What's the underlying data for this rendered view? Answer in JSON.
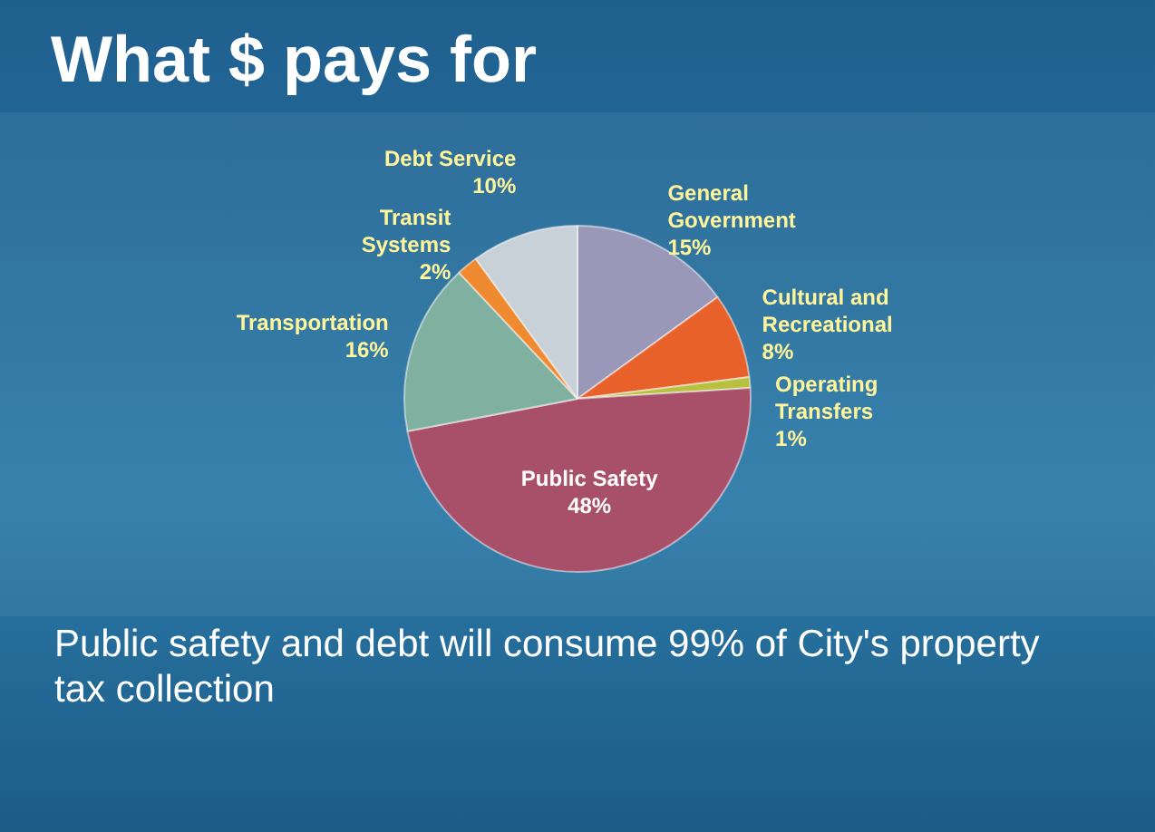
{
  "chart_data": {
    "type": "pie",
    "title": "What $ pays for",
    "categories": [
      "General Government",
      "Cultural and Recreational",
      "Operating Transfers",
      "Public Safety",
      "Transportation",
      "Transit Systems",
      "Debt Service"
    ],
    "values": [
      15,
      8,
      1,
      48,
      16,
      2,
      10
    ],
    "colors": [
      "#9a98b8",
      "#e8602a",
      "#b8c040",
      "#a8506a",
      "#80b0a0",
      "#f08a30",
      "#c8d0d8"
    ],
    "value_labels": [
      "15%",
      "8%",
      "1%",
      "48%",
      "16%",
      "2%",
      "10%"
    ],
    "legend": false,
    "annotations": [
      "Public safety and debt will consume 99% of City's property tax collection"
    ]
  }
}
